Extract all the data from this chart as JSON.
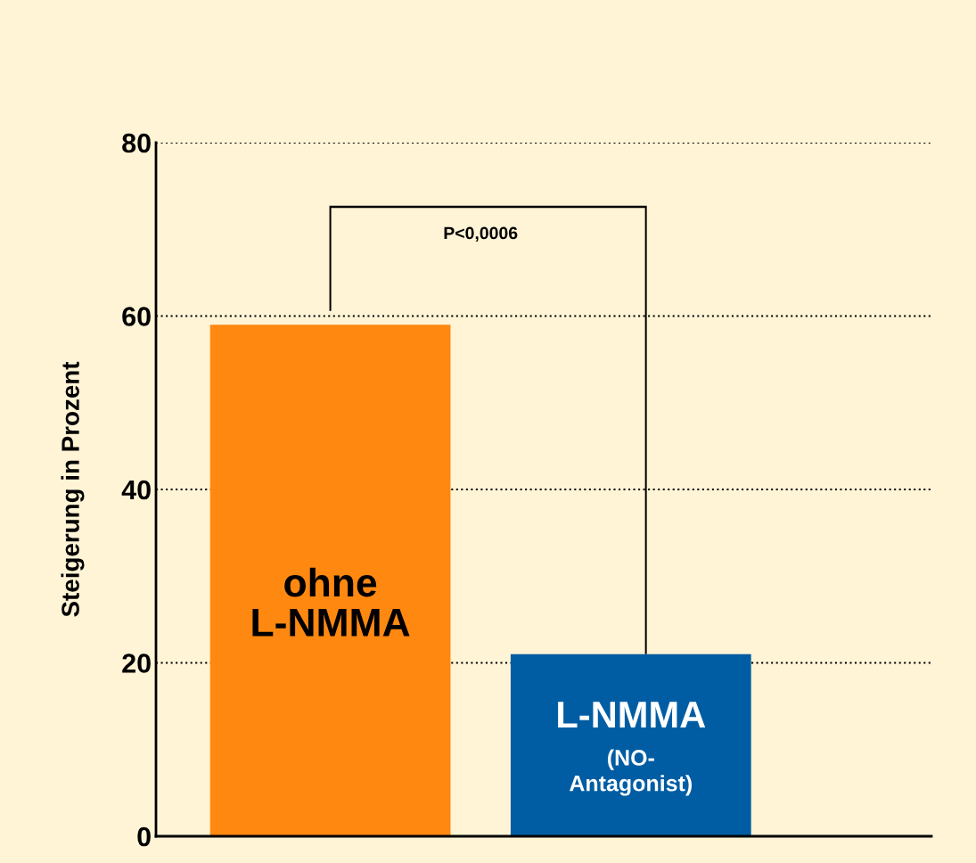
{
  "chart_data": {
    "type": "bar",
    "ylabel": "Steigerung in Prozent",
    "categories": [
      "ohne\nL-NMMA",
      "L-NMMA"
    ],
    "values": [
      59,
      21
    ],
    "colors": [
      "#ff8811",
      "#005da3"
    ],
    "ylim": [
      0,
      80
    ],
    "yticks": [
      0,
      20,
      40,
      60,
      80
    ],
    "grid": "y",
    "tick_labels": "y",
    "annotations": [
      "P<0,0006",
      "(NO-\nAntagonist)"
    ]
  }
}
